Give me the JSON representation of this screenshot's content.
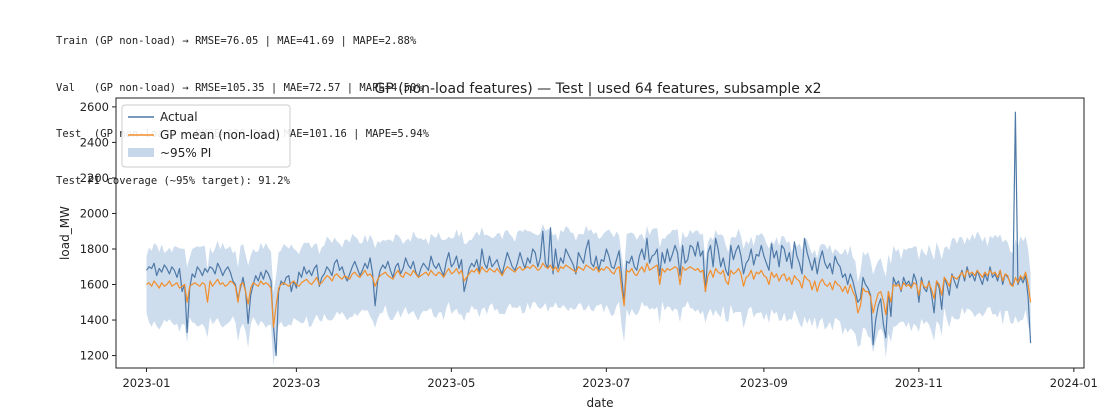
{
  "console_lines": [
    "Train (GP non-load) → RMSE=76.05 | MAE=41.69 | MAPE=2.88%",
    "Val   (GP non-load) → RMSE=105.35 | MAE=72.57 | MAPE=4.50%",
    "Test  (GP non-load) → RMSE=129.28 | MAE=101.16 | MAPE=5.94%",
    "Test PI coverage (~95% target): 91.2%"
  ],
  "chart_data": {
    "type": "line",
    "title": "GP (non-load features) — Test | used 64 features, subsample x2",
    "xlabel": "date",
    "ylabel": "load_MW",
    "x_range": [
      "2022-12-20",
      "2024-01-05"
    ],
    "ylim": [
      1130,
      2650
    ],
    "x_ticks": [
      {
        "label": "2023-01",
        "date": "2023-01-01"
      },
      {
        "label": "2023-03",
        "date": "2023-03-01"
      },
      {
        "label": "2023-05",
        "date": "2023-05-01"
      },
      {
        "label": "2023-07",
        "date": "2023-07-01"
      },
      {
        "label": "2023-09",
        "date": "2023-09-01"
      },
      {
        "label": "2023-11",
        "date": "2023-11-01"
      },
      {
        "label": "2024-01",
        "date": "2024-01-01"
      }
    ],
    "y_ticks": [
      1200,
      1400,
      1600,
      1800,
      2000,
      2200,
      2400,
      2600
    ],
    "grid": false,
    "legend_position": "top-left",
    "start_date": "2023-01-01",
    "series": [
      {
        "name": "Actual",
        "color": "#4e79a7",
        "values": [
          1680,
          1700,
          1690,
          1720,
          1650,
          1690,
          1670,
          1710,
          1690,
          1660,
          1700,
          1680,
          1640,
          1690,
          1560,
          1600,
          1330,
          1580,
          1660,
          1640,
          1700,
          1680,
          1650,
          1690,
          1670,
          1700,
          1690,
          1660,
          1720,
          1690,
          1650,
          1680,
          1700,
          1670,
          1620,
          1600,
          1520,
          1580,
          1640,
          1560,
          1380,
          1540,
          1600,
          1650,
          1620,
          1670,
          1630,
          1680,
          1660,
          1620,
          1360,
          1200,
          1560,
          1620,
          1600,
          1640,
          1650,
          1560,
          1620,
          1580,
          1670,
          1640,
          1700,
          1660,
          1680,
          1650,
          1690,
          1710,
          1590,
          1640,
          1660,
          1700,
          1680,
          1650,
          1720,
          1740,
          1680,
          1700,
          1650,
          1620,
          1660,
          1700,
          1730,
          1690,
          1650,
          1680,
          1720,
          1690,
          1750,
          1660,
          1480,
          1620,
          1680,
          1710,
          1690,
          1730,
          1680,
          1640,
          1700,
          1720,
          1660,
          1690,
          1750,
          1710,
          1690,
          1730,
          1670,
          1640,
          1690,
          1720,
          1700,
          1680,
          1760,
          1710,
          1690,
          1720,
          1680,
          1650,
          1730,
          1780,
          1700,
          1720,
          1760,
          1690,
          1740,
          1560,
          1620,
          1690,
          1720,
          1700,
          1740,
          1670,
          1800,
          1720,
          1690,
          1760,
          1700,
          1720,
          1740,
          1690,
          1660,
          1720,
          1780,
          1740,
          1700,
          1680,
          1720,
          1780,
          1730,
          1690,
          1750,
          1720,
          1800,
          1780,
          1700,
          1750,
          1900,
          1720,
          1690,
          1920,
          1660,
          1800,
          1690,
          1750,
          1720,
          1800,
          1770,
          1740,
          1710,
          1660,
          1780,
          1750,
          1720,
          1800,
          1850,
          1720,
          1700,
          1760,
          1680,
          1740,
          1730,
          1800,
          1760,
          1700,
          1690,
          1740,
          1790,
          1650,
          1500,
          1730,
          1720,
          1760,
          1700,
          1680,
          1760,
          1800,
          1740,
          1860,
          1720,
          1760,
          1770,
          1800,
          1650,
          1780,
          1720,
          1800,
          1730,
          1770,
          1820,
          1780,
          1650,
          1820,
          1720,
          1740,
          1820,
          1810,
          1760,
          1840,
          1760,
          1790,
          1560,
          1780,
          1820,
          1700,
          1860,
          1800,
          1700,
          1750,
          1680,
          1650,
          1820,
          1740,
          1790,
          1820,
          1760,
          1660,
          1720,
          1740,
          1800,
          1710,
          1770,
          1760,
          1820,
          1760,
          1720,
          1680,
          1830,
          1750,
          1790,
          1700,
          1820,
          1800,
          1730,
          1780,
          1690,
          1840,
          1760,
          1720,
          1660,
          1860,
          1780,
          1730,
          1680,
          1750,
          1660,
          1740,
          1790,
          1720,
          1690,
          1720,
          1660,
          1760,
          1720,
          1700,
          1640,
          1660,
          1600,
          1660,
          1620,
          1560,
          1500,
          1520,
          1640,
          1600,
          1580,
          1540,
          1260,
          1400,
          1480,
          1520,
          1380,
          1300,
          1560,
          1420,
          1640,
          1600,
          1620,
          1560,
          1640,
          1600,
          1620,
          1580,
          1660,
          1620,
          1500,
          1640,
          1580,
          1560,
          1620,
          1540,
          1440,
          1620,
          1580,
          1460,
          1640,
          1600,
          1540,
          1660,
          1620,
          1580,
          1640,
          1680,
          1620,
          1700,
          1640,
          1660,
          1620,
          1680,
          1640,
          1600,
          1660,
          1620,
          1700,
          1640,
          1660,
          1620,
          1680,
          1600,
          1660,
          1640,
          1610,
          1590,
          2570,
          1600,
          1640,
          1610,
          1650,
          1530,
          1270
        ]
      },
      {
        "name": "GP mean (non-load)",
        "color": "#f28e2b",
        "values": [
          1600,
          1610,
          1590,
          1620,
          1600,
          1580,
          1610,
          1590,
          1600,
          1620,
          1590,
          1600,
          1610,
          1580,
          1590,
          1600,
          1500,
          1590,
          1600,
          1610,
          1600,
          1590,
          1610,
          1600,
          1500,
          1620,
          1590,
          1610,
          1630,
          1600,
          1610,
          1590,
          1600,
          1620,
          1610,
          1590,
          1500,
          1600,
          1610,
          1560,
          1490,
          1580,
          1610,
          1600,
          1590,
          1620,
          1600,
          1610,
          1600,
          1580,
          1360,
          1480,
          1580,
          1600,
          1610,
          1600,
          1590,
          1610,
          1620,
          1600,
          1590,
          1610,
          1620,
          1630,
          1610,
          1600,
          1620,
          1640,
          1600,
          1610,
          1630,
          1650,
          1640,
          1620,
          1650,
          1660,
          1640,
          1630,
          1650,
          1640,
          1630,
          1660,
          1670,
          1650,
          1640,
          1660,
          1680,
          1650,
          1660,
          1640,
          1590,
          1630,
          1650,
          1660,
          1670,
          1650,
          1640,
          1630,
          1660,
          1680,
          1650,
          1640,
          1670,
          1660,
          1650,
          1680,
          1660,
          1640,
          1650,
          1660,
          1670,
          1650,
          1680,
          1660,
          1650,
          1670,
          1660,
          1640,
          1670,
          1690,
          1660,
          1670,
          1690,
          1660,
          1680,
          1620,
          1640,
          1660,
          1680,
          1670,
          1690,
          1660,
          1700,
          1680,
          1670,
          1690,
          1680,
          1670,
          1690,
          1670,
          1650,
          1680,
          1700,
          1690,
          1680,
          1670,
          1690,
          1700,
          1680,
          1690,
          1700,
          1690,
          1710,
          1700,
          1680,
          1690,
          1720,
          1700,
          1690,
          1710,
          1680,
          1700,
          1670,
          1700,
          1690,
          1710,
          1700,
          1690,
          1680,
          1670,
          1700,
          1690,
          1680,
          1710,
          1700,
          1690,
          1680,
          1700,
          1670,
          1690,
          1680,
          1700,
          1690,
          1670,
          1660,
          1690,
          1700,
          1580,
          1480,
          1680,
          1670,
          1690,
          1660,
          1650,
          1680,
          1700,
          1670,
          1720,
          1680,
          1690,
          1700,
          1710,
          1600,
          1690,
          1670,
          1690,
          1680,
          1690,
          1700,
          1690,
          1600,
          1700,
          1680,
          1690,
          1700,
          1690,
          1680,
          1690,
          1670,
          1680,
          1560,
          1650,
          1680,
          1640,
          1690,
          1670,
          1660,
          1680,
          1620,
          1600,
          1680,
          1660,
          1670,
          1690,
          1660,
          1590,
          1640,
          1650,
          1680,
          1630,
          1670,
          1660,
          1680,
          1650,
          1640,
          1600,
          1670,
          1640,
          1660,
          1620,
          1650,
          1660,
          1620,
          1640,
          1600,
          1650,
          1630,
          1620,
          1580,
          1650,
          1630,
          1620,
          1570,
          1620,
          1560,
          1610,
          1630,
          1600,
          1590,
          1610,
          1570,
          1620,
          1600,
          1590,
          1560,
          1590,
          1550,
          1600,
          1560,
          1530,
          1440,
          1480,
          1580,
          1560,
          1560,
          1530,
          1440,
          1500,
          1550,
          1560,
          1510,
          1430,
          1560,
          1500,
          1600,
          1590,
          1600,
          1570,
          1610,
          1590,
          1600,
          1580,
          1610,
          1600,
          1540,
          1620,
          1590,
          1580,
          1610,
          1570,
          1520,
          1620,
          1600,
          1540,
          1640,
          1620,
          1590,
          1650,
          1640,
          1630,
          1650,
          1670,
          1640,
          1680,
          1660,
          1670,
          1650,
          1680,
          1660,
          1640,
          1670,
          1650,
          1680,
          1660,
          1670,
          1640,
          1680,
          1620,
          1660,
          1650,
          1600,
          1590,
          1640,
          1610,
          1650,
          1630,
          1670,
          1600,
          1500
        ]
      }
    ],
    "interval": {
      "name": "~95% PI",
      "color": "#c6d7ea",
      "half_width": 160
    }
  }
}
